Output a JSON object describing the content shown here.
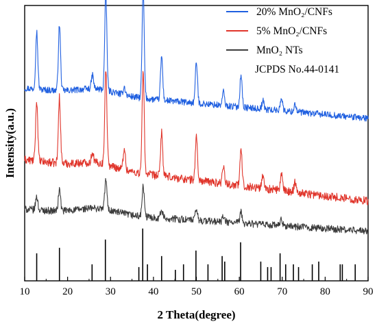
{
  "chart_data": {
    "type": "line",
    "title": "",
    "xlabel": "2 Theta(degree)",
    "ylabel": "Intensity(a.u.)",
    "xlim": [
      10,
      90
    ],
    "x_ticks": [
      10,
      20,
      30,
      40,
      50,
      60,
      70,
      80,
      90
    ],
    "y_ticks": [],
    "grid": false,
    "legend_position": "top-right",
    "legend": [
      {
        "label": "20% MnO₂/CNFs",
        "color": "#1f5fe0"
      },
      {
        "label": "5% MnO₂/CNFs",
        "color": "#e0342a"
      },
      {
        "label": "MnO₂ NTs",
        "color": "#3c3c3c"
      }
    ],
    "reference_label": "JCPDS No.44-0141",
    "series": [
      {
        "name": "20% MnO₂/CNFs",
        "color": "#1f5fe0",
        "baseline_left": 0.7,
        "baseline_right": 0.59,
        "noise": 0.012,
        "peaks": [
          {
            "x": 12.8,
            "h": 0.21
          },
          {
            "x": 18.1,
            "h": 0.24
          },
          {
            "x": 25.8,
            "h": 0.05
          },
          {
            "x": 28.9,
            "h": 0.35
          },
          {
            "x": 33.2,
            "h": 0.03
          },
          {
            "x": 37.6,
            "h": 0.39
          },
          {
            "x": 41.9,
            "h": 0.16
          },
          {
            "x": 50.0,
            "h": 0.15
          },
          {
            "x": 56.3,
            "h": 0.05
          },
          {
            "x": 60.4,
            "h": 0.12
          },
          {
            "x": 65.5,
            "h": 0.03
          },
          {
            "x": 69.8,
            "h": 0.05
          },
          {
            "x": 73.0,
            "h": 0.03
          }
        ]
      },
      {
        "name": "5% MnO₂/CNFs",
        "color": "#e0342a",
        "baseline_left": 0.44,
        "baseline_right": 0.29,
        "noise": 0.015,
        "peaks": [
          {
            "x": 12.8,
            "h": 0.22
          },
          {
            "x": 18.1,
            "h": 0.24
          },
          {
            "x": 25.8,
            "h": 0.04
          },
          {
            "x": 28.9,
            "h": 0.35
          },
          {
            "x": 33.2,
            "h": 0.08
          },
          {
            "x": 37.6,
            "h": 0.37
          },
          {
            "x": 41.9,
            "h": 0.16
          },
          {
            "x": 50.0,
            "h": 0.16
          },
          {
            "x": 56.3,
            "h": 0.07
          },
          {
            "x": 60.4,
            "h": 0.13
          },
          {
            "x": 65.5,
            "h": 0.05
          },
          {
            "x": 69.8,
            "h": 0.06
          },
          {
            "x": 73.0,
            "h": 0.04
          }
        ]
      },
      {
        "name": "MnO₂ NTs",
        "color": "#3c3c3c",
        "baseline_left": 0.26,
        "baseline_right": 0.18,
        "noise": 0.013,
        "peaks": [
          {
            "x": 12.8,
            "h": 0.05
          },
          {
            "x": 18.1,
            "h": 0.08
          },
          {
            "x": 28.9,
            "h": 0.11
          },
          {
            "x": 37.6,
            "h": 0.11
          },
          {
            "x": 41.9,
            "h": 0.03
          },
          {
            "x": 50.0,
            "h": 0.04
          },
          {
            "x": 56.3,
            "h": 0.02
          },
          {
            "x": 60.4,
            "h": 0.04
          },
          {
            "x": 69.8,
            "h": 0.02
          }
        ]
      }
    ],
    "reference_lines": [
      {
        "x": 12.8,
        "h": 0.1
      },
      {
        "x": 18.1,
        "h": 0.12
      },
      {
        "x": 25.7,
        "h": 0.06
      },
      {
        "x": 28.8,
        "h": 0.15
      },
      {
        "x": 36.6,
        "h": 0.05
      },
      {
        "x": 37.5,
        "h": 0.19
      },
      {
        "x": 38.6,
        "h": 0.06
      },
      {
        "x": 41.9,
        "h": 0.09
      },
      {
        "x": 45.1,
        "h": 0.04
      },
      {
        "x": 47.0,
        "h": 0.06
      },
      {
        "x": 49.9,
        "h": 0.11
      },
      {
        "x": 52.7,
        "h": 0.06
      },
      {
        "x": 56.0,
        "h": 0.09
      },
      {
        "x": 56.6,
        "h": 0.07
      },
      {
        "x": 60.3,
        "h": 0.14
      },
      {
        "x": 65.0,
        "h": 0.07
      },
      {
        "x": 66.6,
        "h": 0.05
      },
      {
        "x": 67.4,
        "h": 0.05
      },
      {
        "x": 69.5,
        "h": 0.1
      },
      {
        "x": 70.8,
        "h": 0.06
      },
      {
        "x": 72.6,
        "h": 0.06
      },
      {
        "x": 73.8,
        "h": 0.05
      },
      {
        "x": 77.0,
        "h": 0.06
      },
      {
        "x": 78.5,
        "h": 0.07
      },
      {
        "x": 83.5,
        "h": 0.06
      },
      {
        "x": 84.0,
        "h": 0.06
      },
      {
        "x": 87.0,
        "h": 0.06
      }
    ]
  }
}
